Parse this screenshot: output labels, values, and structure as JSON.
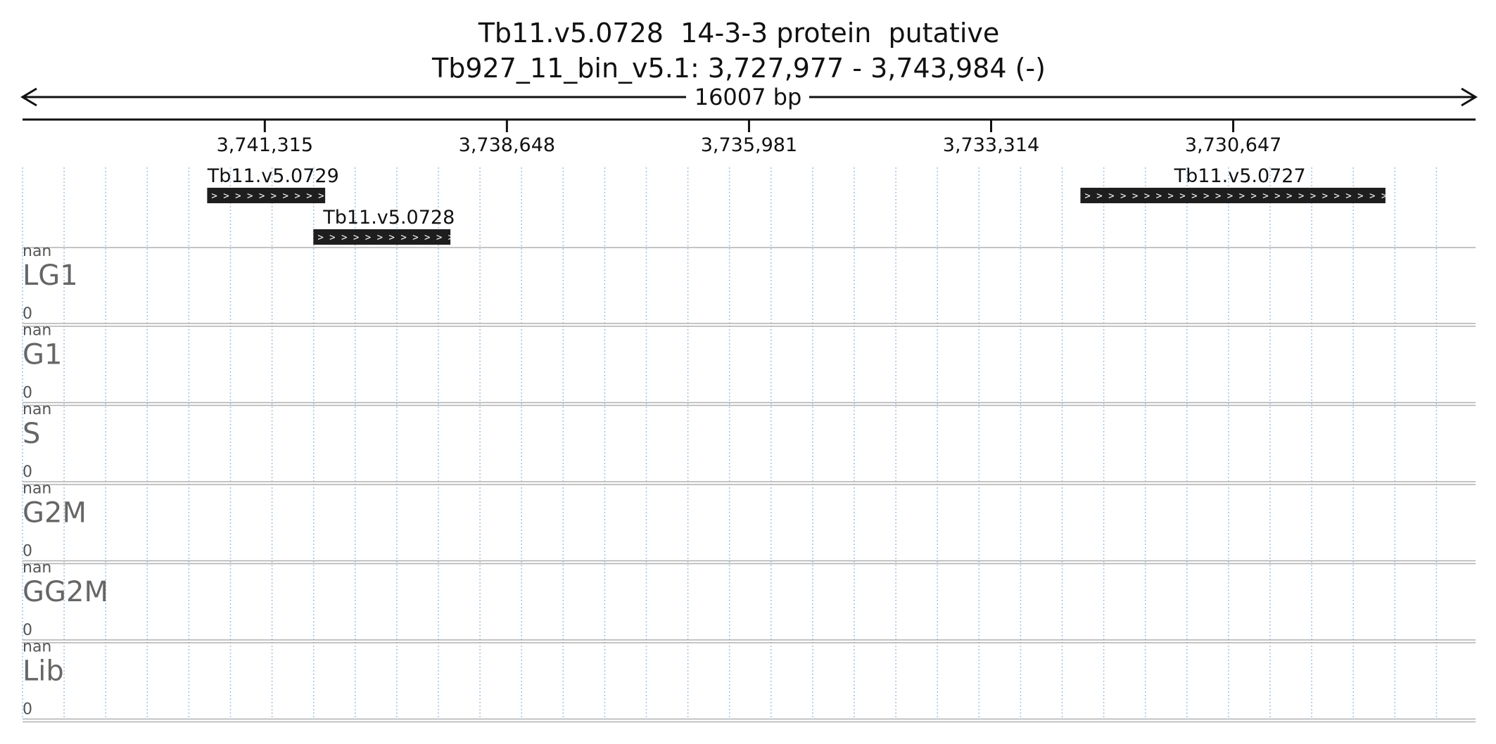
{
  "title": {
    "line1": "Tb11.v5.0728  14-3-3 protein  putative",
    "line2": "Tb927_11_bin_v5.1: 3,727,977 - 3,743,984 (-)"
  },
  "span_label": "16007 bp",
  "region": {
    "start": 3727977,
    "end": 3743984,
    "strand": "-"
  },
  "ticks": [
    {
      "pos": 3741315,
      "label": "3,741,315"
    },
    {
      "pos": 3738648,
      "label": "3,738,648"
    },
    {
      "pos": 3735981,
      "label": "3,735,981"
    },
    {
      "pos": 3733314,
      "label": "3,733,314"
    },
    {
      "pos": 3730647,
      "label": "3,730,647"
    }
  ],
  "genes": [
    {
      "name": "Tb11.v5.0729",
      "start": 3740650,
      "end": 3741950,
      "row": 0
    },
    {
      "name": "Tb11.v5.0728",
      "start": 3739270,
      "end": 3740780,
      "row": 1
    },
    {
      "name": "Tb11.v5.0727",
      "start": 3728970,
      "end": 3732330,
      "row": 0
    }
  ],
  "tracks": [
    {
      "name": "LG1",
      "max": "nan",
      "min": "0"
    },
    {
      "name": "G1",
      "max": "nan",
      "min": "0"
    },
    {
      "name": "S",
      "max": "nan",
      "min": "0"
    },
    {
      "name": "G2M",
      "max": "nan",
      "min": "0"
    },
    {
      "name": "GG2M",
      "max": "nan",
      "min": "0"
    },
    {
      "name": "Lib",
      "max": "nan",
      "min": "0"
    }
  ],
  "colors": {
    "gene_fill": "#1e1e1e",
    "grid": "#9fc3e4",
    "separator": "#b0b0b0",
    "axis": "#111111"
  }
}
